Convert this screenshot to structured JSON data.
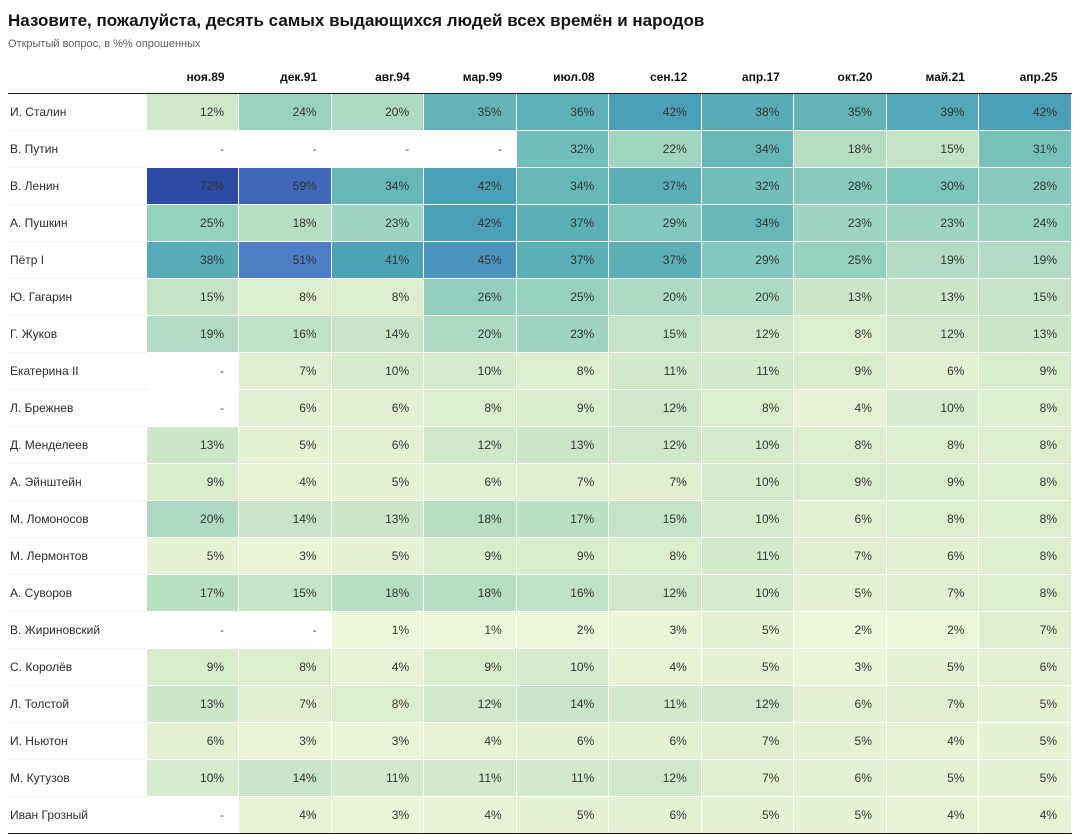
{
  "page": {
    "title": "Назовите, пожалуйста, десять самых выдающихся людей всех времён и народов",
    "subtitle": "Открытый вопрос, в %% опрошенных"
  },
  "theme": {
    "rule_color": "#1a1a1a",
    "cell_text_color": "#333333",
    "null_cell_color": "#ffffff"
  },
  "chart_data": {
    "type": "heatmap",
    "title": "Назовите, пожалуйста, десять самых выдающихся людей всех времён и народов",
    "subtitle": "Открытый вопрос, в %% опрошенных",
    "value_suffix": "%",
    "null_display": "-",
    "value_range": [
      0,
      72
    ],
    "columns": [
      "ноя.89",
      "дек.91",
      "авг.94",
      "мар.99",
      "июл.08",
      "сен.12",
      "апр.17",
      "окт.20",
      "май.21",
      "апр.25"
    ],
    "rows": [
      {
        "label": "И. Сталин",
        "values": [
          12,
          24,
          20,
          35,
          36,
          42,
          38,
          35,
          39,
          42
        ]
      },
      {
        "label": "В. Путин",
        "values": [
          null,
          null,
          null,
          null,
          32,
          22,
          34,
          18,
          15,
          31
        ]
      },
      {
        "label": "В. Ленин",
        "values": [
          72,
          59,
          34,
          42,
          34,
          37,
          32,
          28,
          30,
          28
        ]
      },
      {
        "label": "А. Пушкин",
        "values": [
          25,
          18,
          23,
          42,
          37,
          29,
          34,
          23,
          23,
          24
        ]
      },
      {
        "label": "Пётр I",
        "values": [
          38,
          51,
          41,
          45,
          37,
          37,
          29,
          25,
          19,
          19
        ]
      },
      {
        "label": "Ю. Гагарин",
        "values": [
          15,
          8,
          8,
          26,
          25,
          20,
          20,
          13,
          13,
          15
        ]
      },
      {
        "label": "Г. Жуков",
        "values": [
          19,
          16,
          14,
          20,
          23,
          15,
          12,
          8,
          12,
          13
        ]
      },
      {
        "label": "Екатерина II",
        "values": [
          null,
          7,
          10,
          10,
          8,
          11,
          11,
          9,
          6,
          9
        ]
      },
      {
        "label": "Л. Брежнев",
        "values": [
          null,
          6,
          6,
          8,
          9,
          12,
          8,
          4,
          10,
          8
        ]
      },
      {
        "label": "Д. Менделеев",
        "values": [
          13,
          5,
          6,
          12,
          13,
          12,
          10,
          8,
          8,
          8
        ]
      },
      {
        "label": "А. Эйнштейн",
        "values": [
          9,
          4,
          5,
          6,
          7,
          7,
          10,
          9,
          9,
          8
        ]
      },
      {
        "label": "М. Ломоносов",
        "values": [
          20,
          14,
          13,
          18,
          17,
          15,
          10,
          6,
          8,
          8
        ]
      },
      {
        "label": "М. Лермонтов",
        "values": [
          5,
          3,
          5,
          9,
          9,
          8,
          11,
          7,
          6,
          8
        ]
      },
      {
        "label": "А. Суворов",
        "values": [
          17,
          15,
          18,
          18,
          16,
          12,
          10,
          5,
          7,
          8
        ]
      },
      {
        "label": "В. Жириновский",
        "values": [
          null,
          null,
          1,
          1,
          2,
          3,
          5,
          2,
          2,
          7
        ]
      },
      {
        "label": "С. Королёв",
        "values": [
          9,
          8,
          4,
          9,
          10,
          4,
          5,
          3,
          5,
          6
        ]
      },
      {
        "label": "Л. Толстой",
        "values": [
          13,
          7,
          8,
          12,
          14,
          11,
          12,
          6,
          7,
          5
        ]
      },
      {
        "label": "И. Ньютон",
        "values": [
          6,
          3,
          3,
          4,
          6,
          6,
          7,
          5,
          4,
          5
        ]
      },
      {
        "label": "М. Кутузов",
        "values": [
          10,
          14,
          11,
          11,
          11,
          12,
          7,
          6,
          5,
          5
        ]
      },
      {
        "label": "Иван Грозный",
        "values": [
          null,
          4,
          3,
          4,
          5,
          6,
          5,
          5,
          4,
          4
        ]
      }
    ],
    "color_scale_stops": [
      [
        1,
        "#eff7da"
      ],
      [
        8,
        "#ddeecd"
      ],
      [
        15,
        "#c4e4c6"
      ],
      [
        22,
        "#a2d6c0"
      ],
      [
        28,
        "#88cbbd"
      ],
      [
        34,
        "#66b7b8"
      ],
      [
        42,
        "#4b9fb6"
      ],
      [
        46,
        "#4b90c1"
      ],
      [
        52,
        "#4b7ac2"
      ],
      [
        60,
        "#4064b9"
      ],
      [
        72,
        "#2b4aa2"
      ]
    ],
    "legend_position": "none",
    "grid": "white-cell-borders"
  }
}
